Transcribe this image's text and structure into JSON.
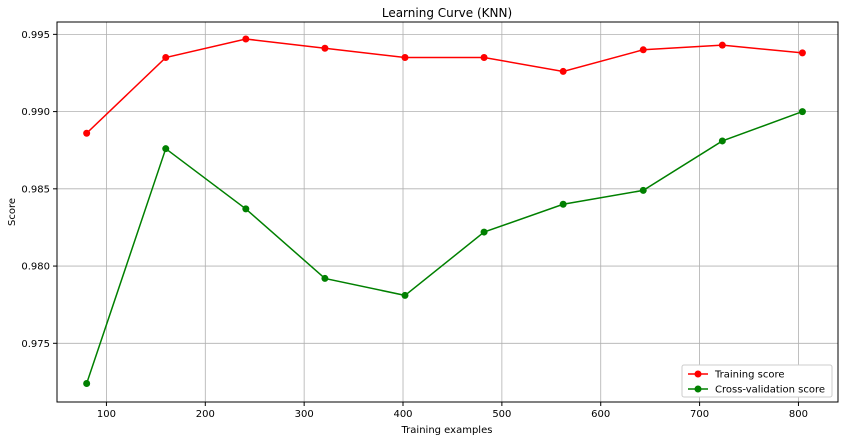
{
  "chart_data": {
    "type": "line",
    "title": "Learning Curve (KNN)",
    "xlabel": "Training examples",
    "ylabel": "Score",
    "xlim": [
      50,
      840
    ],
    "ylim": [
      0.9712,
      0.9958
    ],
    "xticks": [
      100,
      200,
      300,
      400,
      500,
      600,
      700,
      800
    ],
    "yticks": [
      0.975,
      0.98,
      0.985,
      0.99,
      0.995
    ],
    "ytick_labels": [
      "0.975",
      "0.980",
      "0.985",
      "0.990",
      "0.995"
    ],
    "grid": true,
    "legend_position": "lower-right",
    "x": [
      80,
      160,
      241,
      321,
      402,
      482,
      562,
      643,
      723,
      804
    ],
    "series": [
      {
        "name": "Training score",
        "color": "#ff0000",
        "marker": "circle",
        "values": [
          0.9886,
          0.9935,
          0.9947,
          0.9941,
          0.9935,
          0.9935,
          0.9926,
          0.994,
          0.9943,
          0.9938
        ]
      },
      {
        "name": "Cross-validation score",
        "color": "#008000",
        "marker": "circle",
        "values": [
          0.9724,
          0.9876,
          0.9837,
          0.9792,
          0.9781,
          0.9822,
          0.984,
          0.9849,
          0.9881,
          0.99
        ]
      }
    ]
  }
}
